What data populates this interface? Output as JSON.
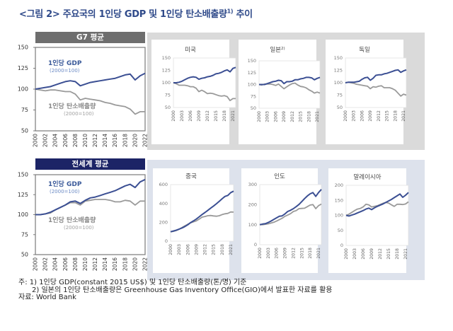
{
  "figure": {
    "title": "<그림 2> 주요국의 1인당 GDP 및 1인당 탄소배출량",
    "title_sup": "1)",
    "title_suffix": " 추이"
  },
  "headers": {
    "g7": "G7 평균",
    "world": "전세계 평균"
  },
  "colors": {
    "gdp": "#3b4f93",
    "carbon": "#9a9a9a",
    "g7_header": "#6e6e6e",
    "world_header": "#1c2466",
    "top_panel": "#dadada",
    "bottom_panel": "#dde2ec"
  },
  "notes": {
    "line1": "주: 1) 1인당 GDP(constant 2015 US$) 및 1인당 탄소배출량(톤/명) 기준",
    "line2": "2) 일본의 1인당 탄소배출량은 Greenhouse Gas Inventory Office(GIO)에서 발표한 자료를 활용",
    "source": "자료: World Bank"
  },
  "chart_data": [
    {
      "id": "g7",
      "type": "line",
      "title": "G7 평균",
      "ylim": [
        50,
        150
      ],
      "yticks": [
        "50",
        "75",
        "100",
        "125",
        "150"
      ],
      "xticks": [
        "2000",
        "2002",
        "2004",
        "2006",
        "2008",
        "2010",
        "2012",
        "2014",
        "2016",
        "2018",
        "2020",
        "2022"
      ],
      "x": [
        2000,
        2001,
        2002,
        2003,
        2004,
        2005,
        2006,
        2007,
        2008,
        2009,
        2010,
        2011,
        2012,
        2013,
        2014,
        2015,
        2016,
        2017,
        2018,
        2019,
        2020,
        2021,
        2022
      ],
      "labels": {
        "gdp": "1인당 GDP",
        "gdp_sub": "(2000=100)",
        "carbon": "1인당 탄소배출량",
        "carbon_sub": "(2000=100)"
      },
      "series": [
        {
          "name": "1인당 GDP",
          "key": "gdp",
          "values": [
            100,
            101,
            102,
            103,
            105,
            107,
            109,
            110,
            109,
            104,
            106,
            108,
            109,
            110,
            111,
            112,
            113,
            115,
            117,
            118,
            111,
            116,
            119
          ]
        },
        {
          "name": "1인당 탄소배출량",
          "key": "carbon",
          "values": [
            100,
            99,
            98,
            99,
            99,
            98,
            97,
            97,
            94,
            87,
            89,
            88,
            87,
            86,
            84,
            83,
            81,
            80,
            79,
            76,
            70,
            73,
            73
          ]
        }
      ]
    },
    {
      "id": "world",
      "type": "line",
      "title": "전세계 평균",
      "ylim": [
        50,
        150
      ],
      "yticks": [
        "50",
        "75",
        "100",
        "125",
        "150"
      ],
      "xticks": [
        "2000",
        "2002",
        "2004",
        "2006",
        "2008",
        "2010",
        "2012",
        "2014",
        "2016",
        "2018",
        "2020",
        "2022"
      ],
      "x": [
        2000,
        2001,
        2002,
        2003,
        2004,
        2005,
        2006,
        2007,
        2008,
        2009,
        2010,
        2011,
        2012,
        2013,
        2014,
        2015,
        2016,
        2017,
        2018,
        2019,
        2020,
        2021,
        2022
      ],
      "labels": {
        "gdp": "1인당 GDP",
        "gdp_sub": "(2000=100)",
        "carbon": "1인당 탄소배출량",
        "carbon_sub": "(2000=100)"
      },
      "series": [
        {
          "name": "1인당 GDP",
          "key": "gdp",
          "values": [
            100,
            100,
            101,
            103,
            106,
            109,
            112,
            116,
            117,
            114,
            118,
            121,
            122,
            124,
            126,
            128,
            130,
            133,
            136,
            138,
            134,
            141,
            144
          ]
        },
        {
          "name": "1인당 탄소배출량",
          "key": "carbon",
          "values": [
            100,
            100,
            101,
            102,
            106,
            109,
            112,
            115,
            115,
            112,
            117,
            118,
            119,
            119,
            119,
            118,
            116,
            116,
            118,
            117,
            112,
            117,
            117
          ]
        }
      ]
    },
    {
      "id": "usa",
      "type": "line",
      "title": "미국",
      "ylim": [
        50,
        150
      ],
      "yticks": [
        "50",
        "75",
        "100",
        "125",
        "150"
      ],
      "xticks": [
        "2000",
        "2003",
        "2006",
        "2009",
        "2012",
        "2015",
        "2018",
        "2021"
      ],
      "x": [
        2000,
        2001,
        2002,
        2003,
        2004,
        2005,
        2006,
        2007,
        2008,
        2009,
        2010,
        2011,
        2012,
        2013,
        2014,
        2015,
        2016,
        2017,
        2018,
        2019,
        2020,
        2021,
        2022
      ],
      "series": [
        {
          "name": "1인당 GDP",
          "key": "gdp",
          "values": [
            100,
            100,
            101,
            103,
            106,
            109,
            111,
            112,
            111,
            107,
            109,
            110,
            112,
            113,
            115,
            118,
            119,
            121,
            124,
            126,
            122,
            129,
            131
          ]
        },
        {
          "name": "1인당 탄소배출량",
          "key": "carbon",
          "values": [
            100,
            98,
            95,
            95,
            95,
            94,
            92,
            92,
            89,
            82,
            85,
            82,
            78,
            79,
            78,
            76,
            74,
            73,
            74,
            72,
            64,
            68,
            68
          ]
        }
      ]
    },
    {
      "id": "japan",
      "type": "line",
      "title": "일본",
      "title_sup": "2)",
      "ylim": [
        50,
        150
      ],
      "yticks": [
        "50",
        "75",
        "100",
        "125",
        "150"
      ],
      "xticks": [
        "2000",
        "2003",
        "2006",
        "2009",
        "2012",
        "2015",
        "2018",
        "2021"
      ],
      "x": [
        2000,
        2001,
        2002,
        2003,
        2004,
        2005,
        2006,
        2007,
        2008,
        2009,
        2010,
        2011,
        2012,
        2013,
        2014,
        2015,
        2016,
        2017,
        2018,
        2019,
        2020,
        2021,
        2022
      ],
      "series": [
        {
          "name": "1인당 GDP",
          "key": "gdp",
          "values": [
            100,
            100,
            100,
            102,
            104,
            106,
            107,
            109,
            108,
            102,
            106,
            106,
            107,
            110,
            110,
            112,
            113,
            115,
            115,
            114,
            110,
            113,
            115
          ]
        },
        {
          "name": "1인당 탄소배출량",
          "key": "carbon",
          "values": [
            100,
            99,
            101,
            101,
            101,
            100,
            98,
            101,
            96,
            91,
            95,
            99,
            102,
            103,
            99,
            96,
            95,
            93,
            89,
            86,
            82,
            84,
            82
          ]
        }
      ]
    },
    {
      "id": "germany",
      "type": "line",
      "title": "독일",
      "ylim": [
        50,
        150
      ],
      "yticks": [
        "50",
        "75",
        "100",
        "125",
        "150"
      ],
      "xticks": [
        "2000",
        "2003",
        "2006",
        "2009",
        "2012",
        "2015",
        "2018",
        "2021"
      ],
      "x": [
        2000,
        2001,
        2002,
        2003,
        2004,
        2005,
        2006,
        2007,
        2008,
        2009,
        2010,
        2011,
        2012,
        2013,
        2014,
        2015,
        2016,
        2017,
        2018,
        2019,
        2020,
        2021,
        2022
      ],
      "series": [
        {
          "name": "1인당 GDP",
          "key": "gdp",
          "values": [
            100,
            101,
            101,
            101,
            102,
            103,
            107,
            110,
            111,
            105,
            109,
            115,
            116,
            116,
            118,
            119,
            121,
            123,
            125,
            126,
            121,
            124,
            126
          ]
        },
        {
          "name": "1인당 탄소배출량",
          "key": "carbon",
          "values": [
            100,
            101,
            100,
            99,
            97,
            96,
            95,
            94,
            93,
            88,
            92,
            91,
            93,
            94,
            90,
            90,
            90,
            88,
            85,
            79,
            73,
            77,
            75
          ]
        }
      ]
    },
    {
      "id": "china",
      "type": "line",
      "title": "중국",
      "ylim": [
        0,
        600
      ],
      "yticks": [
        "0",
        "200",
        "400",
        "600"
      ],
      "xticks": [
        "2000",
        "2003",
        "2006",
        "2009",
        "2012",
        "2015",
        "2018",
        "2021"
      ],
      "x": [
        2000,
        2001,
        2002,
        2003,
        2004,
        2005,
        2006,
        2007,
        2008,
        2009,
        2010,
        2011,
        2012,
        2013,
        2014,
        2015,
        2016,
        2017,
        2018,
        2019,
        2020,
        2021,
        2022
      ],
      "series": [
        {
          "name": "1인당 GDP",
          "key": "gdp",
          "values": [
            100,
            108,
            117,
            128,
            140,
            155,
            174,
            197,
            215,
            235,
            259,
            283,
            304,
            327,
            350,
            373,
            397,
            423,
            450,
            475,
            485,
            515,
            530
          ]
        },
        {
          "name": "1인당 탄소배출량",
          "key": "carbon",
          "values": [
            100,
            104,
            113,
            127,
            145,
            163,
            180,
            195,
            205,
            215,
            235,
            255,
            262,
            270,
            272,
            268,
            265,
            270,
            282,
            290,
            295,
            310,
            308
          ]
        }
      ]
    },
    {
      "id": "india",
      "type": "line",
      "title": "인도",
      "ylim": [
        0,
        300
      ],
      "yticks": [
        "0",
        "100",
        "200",
        "300"
      ],
      "xticks": [
        "2000",
        "2003",
        "2006",
        "2009",
        "2012",
        "2015",
        "2018",
        "2021"
      ],
      "x": [
        2000,
        2001,
        2002,
        2003,
        2004,
        2005,
        2006,
        2007,
        2008,
        2009,
        2010,
        2011,
        2012,
        2013,
        2014,
        2015,
        2016,
        2017,
        2018,
        2019,
        2020,
        2021,
        2022
      ],
      "series": [
        {
          "name": "1인당 GDP",
          "key": "gdp",
          "values": [
            100,
            103,
            105,
            111,
            118,
            126,
            134,
            142,
            144,
            154,
            166,
            172,
            180,
            190,
            201,
            215,
            230,
            243,
            254,
            260,
            241,
            260,
            276
          ]
        },
        {
          "name": "1인당 탄소배출량",
          "key": "carbon",
          "values": [
            100,
            100,
            102,
            104,
            108,
            112,
            118,
            125,
            132,
            142,
            148,
            155,
            166,
            170,
            180,
            181,
            182,
            190,
            198,
            200,
            180,
            195,
            203
          ]
        }
      ]
    },
    {
      "id": "malaysia",
      "type": "line",
      "title": "말레이시아",
      "ylim": [
        0,
        200
      ],
      "yticks": [
        "0",
        "50",
        "100",
        "150",
        "200"
      ],
      "xticks": [
        "2000",
        "2003",
        "2006",
        "2009",
        "2012",
        "2015",
        "2018",
        "2021"
      ],
      "x": [
        2000,
        2001,
        2002,
        2003,
        2004,
        2005,
        2006,
        2007,
        2008,
        2009,
        2010,
        2011,
        2012,
        2013,
        2014,
        2015,
        2016,
        2017,
        2018,
        2019,
        2020,
        2021,
        2022
      ],
      "series": [
        {
          "name": "1인당 GDP",
          "key": "gdp",
          "values": [
            100,
            98,
            101,
            104,
            108,
            112,
            116,
            121,
            124,
            119,
            125,
            130,
            134,
            138,
            143,
            148,
            153,
            159,
            165,
            171,
            160,
            167,
            176
          ]
        },
        {
          "name": "1인당 탄소배출량",
          "key": "carbon",
          "values": [
            100,
            104,
            110,
            116,
            121,
            123,
            128,
            137,
            135,
            128,
            130,
            132,
            136,
            140,
            143,
            141,
            135,
            130,
            137,
            137,
            136,
            138,
            145
          ]
        }
      ]
    }
  ]
}
